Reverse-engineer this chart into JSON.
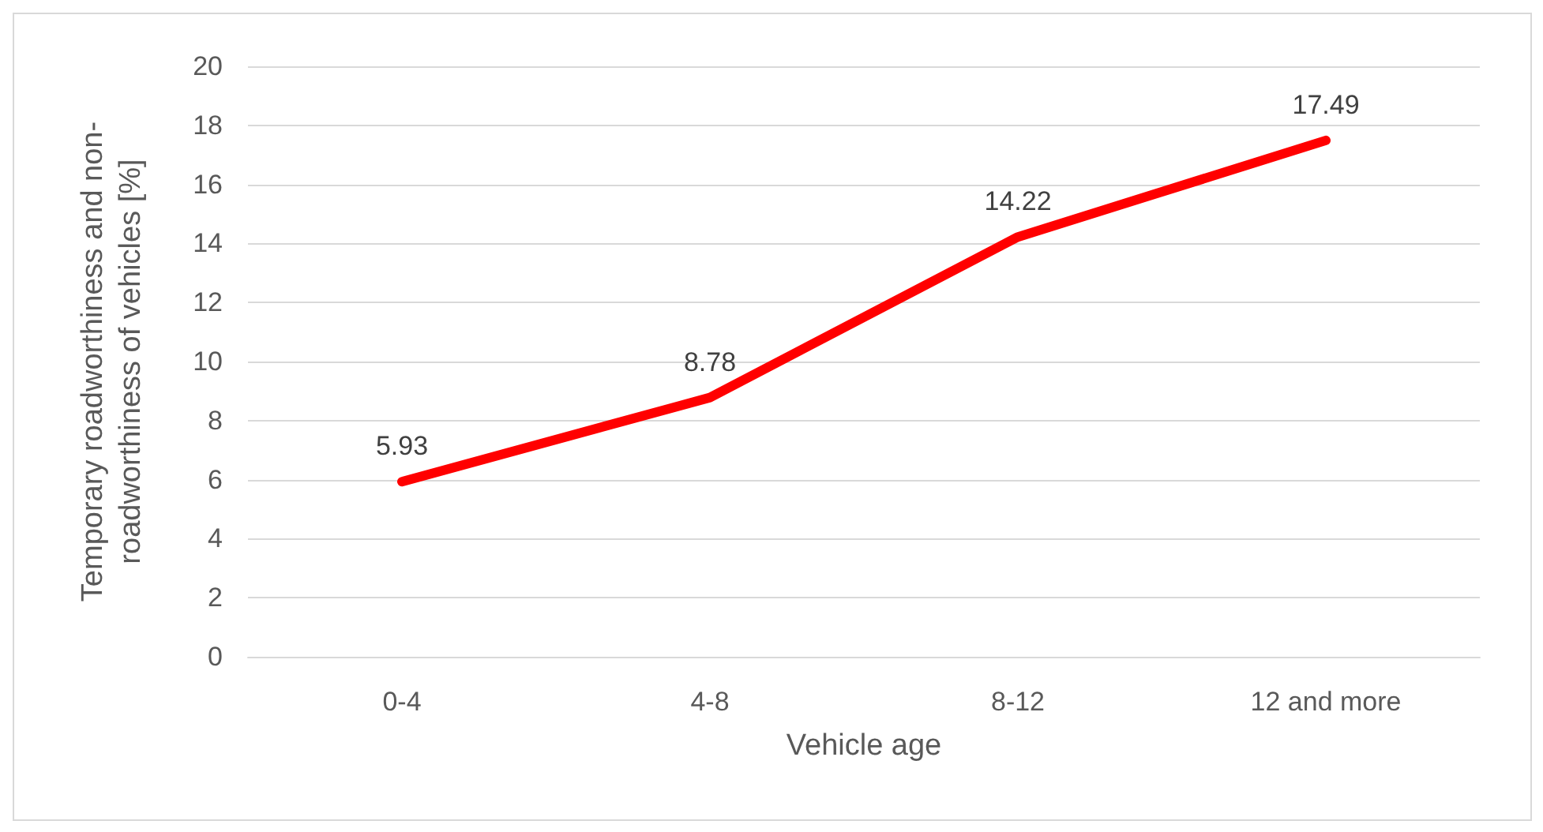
{
  "chart_data": {
    "type": "line",
    "xlabel": "Vehicle age",
    "ylabel": "Temporary roadworthiness and non-roadworthiness of vehicles [%]",
    "categories": [
      "0-4",
      "4-8",
      "8-12",
      "12 and more"
    ],
    "series": [
      {
        "color": "#ff0000",
        "values": [
          5.93,
          8.78,
          14.22,
          17.49
        ]
      }
    ],
    "ylim": [
      0,
      20
    ],
    "yticks": [
      0,
      2,
      4,
      6,
      8,
      10,
      12,
      14,
      16,
      18,
      20
    ],
    "grid": "y",
    "marker": "none",
    "line_style": "solid",
    "data_labels": true
  }
}
